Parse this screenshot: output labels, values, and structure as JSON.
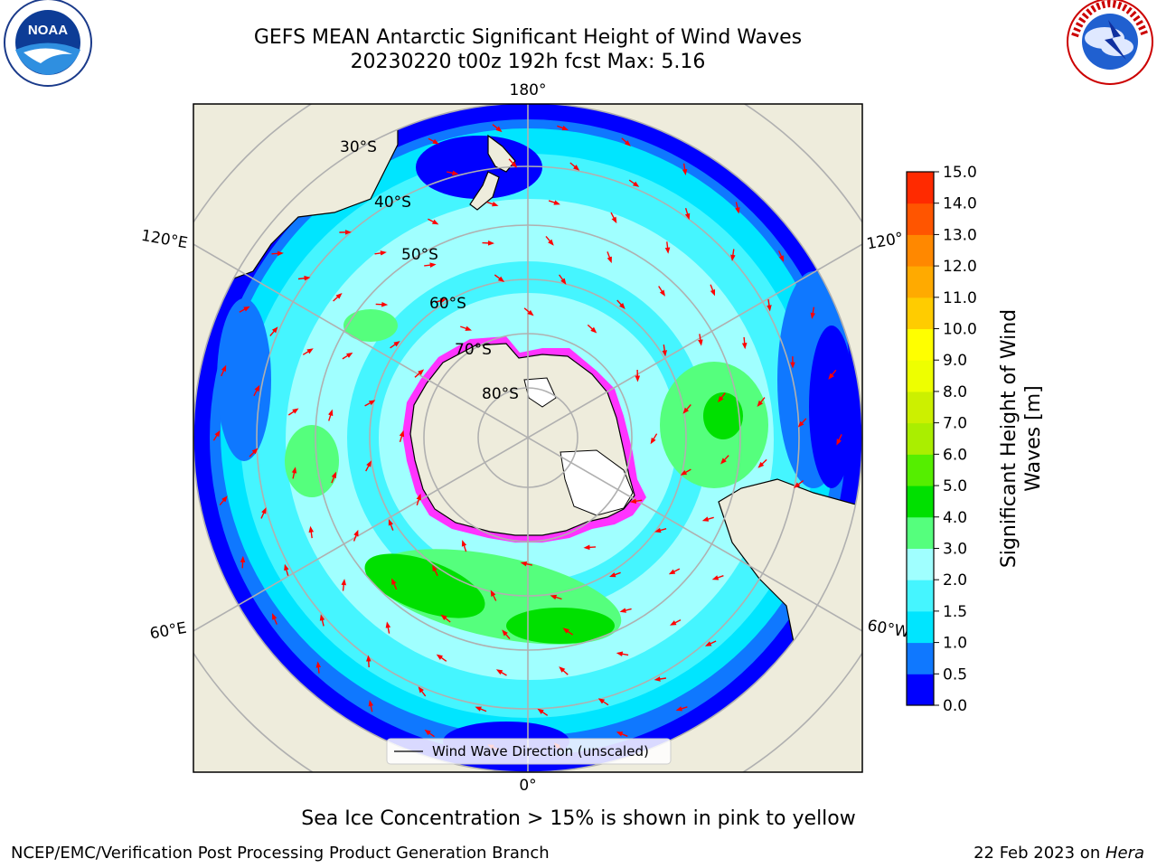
{
  "title": {
    "line1": "GEFS MEAN Antarctic Significant Height of Wind Waves",
    "line2": "20230220 t00z 192h fcst   Max: 5.16"
  },
  "logos": {
    "left_text": "NOAA",
    "left_ring_text": "NATIONAL OCEANIC AND ATMOSPHERIC ADMINISTRATION · U.S. DEPARTMENT OF COMMERCE",
    "right_ring_text": "NATIONAL WEATHER SERVICE"
  },
  "map": {
    "projection": "south-polar-stereographic",
    "latitude_labels": [
      "30°S",
      "40°S",
      "50°S",
      "60°S",
      "70°S",
      "80°S"
    ],
    "longitude_labels": {
      "top": "180°",
      "bottom": "0°",
      "upper_left": "120°E",
      "lower_left": "60°E",
      "upper_right": "120°",
      "lower_right": "60°W"
    },
    "land_color": "#eeecdc",
    "ice_edge_colors": [
      "#ff33ff",
      "#ffff66"
    ],
    "arrow_color": "#ff0000"
  },
  "legend": {
    "label": "Wind Wave Direction (unscaled)"
  },
  "colorbar": {
    "label_line1": "Significant Height of Wind",
    "label_line2": "Waves [m]",
    "ticks": [
      "0.0",
      "0.5",
      "1.0",
      "1.5",
      "2.0",
      "3.0",
      "4.0",
      "5.0",
      "6.0",
      "7.0",
      "8.0",
      "9.0",
      "10.0",
      "11.0",
      "12.0",
      "13.0",
      "14.0",
      "15.0"
    ],
    "colors": [
      "#0000ff",
      "#0f78ff",
      "#00e5ff",
      "#45f5ff",
      "#a0ffff",
      "#55ff7d",
      "#00e000",
      "#55ee00",
      "#aaee00",
      "#ccf000",
      "#eeff00",
      "#ffff00",
      "#ffcc00",
      "#ffaa00",
      "#ff8800",
      "#ff5500",
      "#ff2a00",
      "#ff0000"
    ]
  },
  "note": "Sea Ice Concentration > 15% is shown in pink to yellow",
  "footer": {
    "left": "NCEP/EMC/Verification Post Processing Product Generation Branch",
    "right_prefix": "22 Feb 2023 on ",
    "right_machine": "Hera"
  }
}
